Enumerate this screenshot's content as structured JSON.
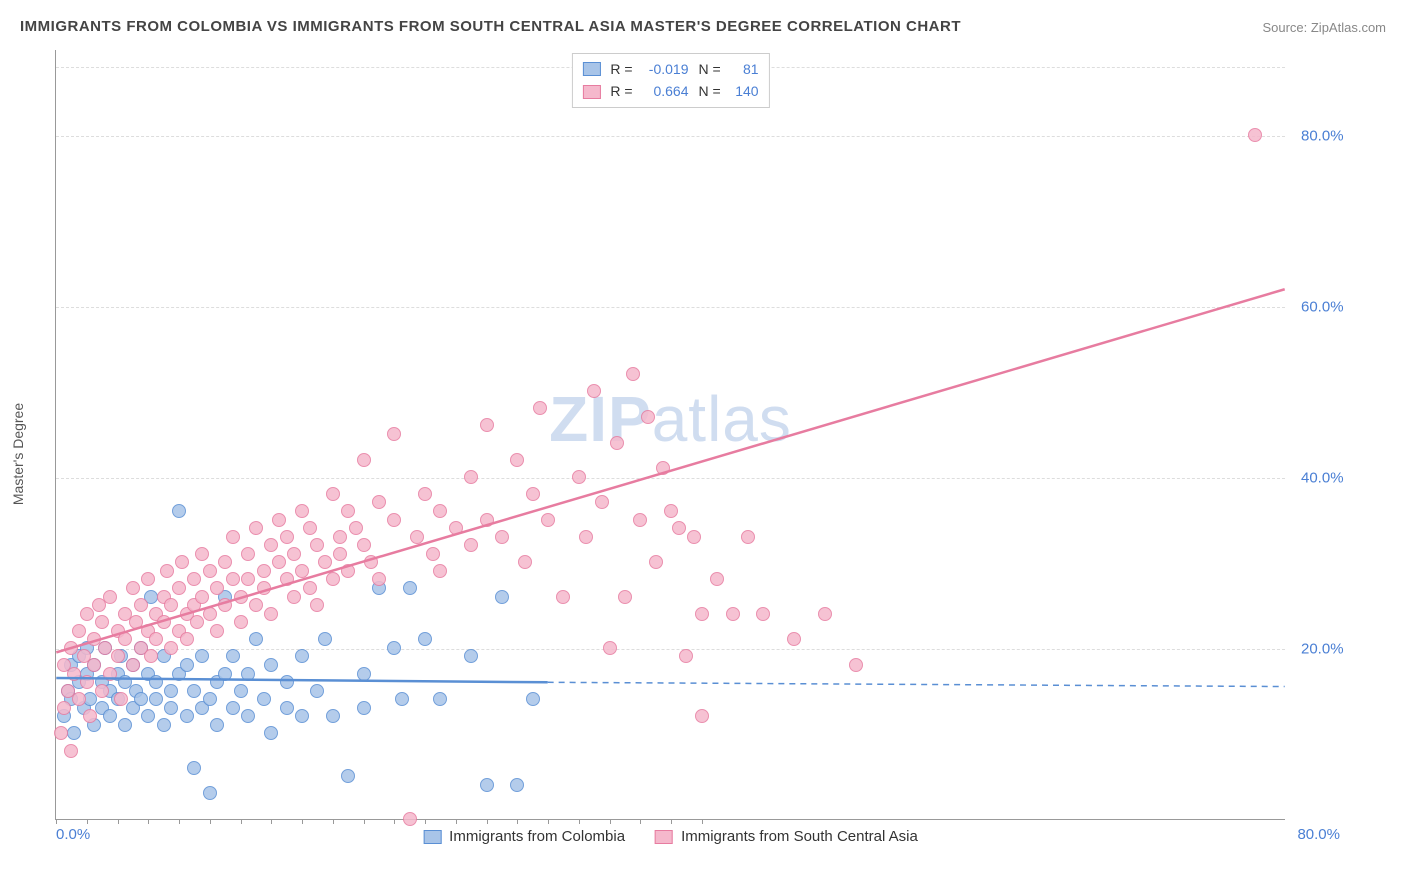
{
  "title": "IMMIGRANTS FROM COLOMBIA VS IMMIGRANTS FROM SOUTH CENTRAL ASIA MASTER'S DEGREE CORRELATION CHART",
  "source": "Source: ZipAtlas.com",
  "watermark_a": "ZIP",
  "watermark_b": "atlas",
  "ylabel": "Master's Degree",
  "chart": {
    "type": "scatter",
    "background_color": "#ffffff",
    "grid_color": "#dddddd",
    "grid_dash": "4,4",
    "axis_color": "#999999",
    "xlim": [
      0,
      80
    ],
    "ylim": [
      0,
      90
    ],
    "ytick_positions": [
      20,
      40,
      60,
      80
    ],
    "ytick_labels": [
      "20.0%",
      "40.0%",
      "60.0%",
      "80.0%"
    ],
    "ytick_color": "#4a7fd4",
    "ytick_fontsize": 15,
    "xtick_start": "0.0%",
    "xtick_end": "80.0%",
    "xaxis_minor_ticks": [
      0,
      2,
      4,
      6,
      8,
      10,
      12,
      14,
      16,
      18,
      20,
      22,
      24,
      26,
      28,
      30,
      32,
      34,
      36,
      38,
      40,
      42
    ],
    "marker_radius": 7,
    "marker_stroke_width": 1.5,
    "marker_fill_opacity": 0.35
  },
  "series": [
    {
      "name": "Immigrants from Colombia",
      "stroke": "#5a8fd4",
      "fill": "#a8c4e8",
      "R": "-0.019",
      "N": "81",
      "trend": {
        "x1": 0,
        "y1": 16.5,
        "x2": 32,
        "y2": 16.0,
        "ext_x2": 80,
        "ext_y2": 15.5,
        "width": 2.5
      },
      "points": [
        [
          0.5,
          12
        ],
        [
          0.8,
          15
        ],
        [
          1.0,
          18
        ],
        [
          1.0,
          14
        ],
        [
          1.2,
          10
        ],
        [
          1.5,
          19
        ],
        [
          1.5,
          16
        ],
        [
          1.8,
          13
        ],
        [
          2.0,
          17
        ],
        [
          2.0,
          20
        ],
        [
          2.2,
          14
        ],
        [
          2.5,
          11
        ],
        [
          2.5,
          18
        ],
        [
          3.0,
          16
        ],
        [
          3.0,
          13
        ],
        [
          3.2,
          20
        ],
        [
          3.5,
          15
        ],
        [
          3.5,
          12
        ],
        [
          4.0,
          17
        ],
        [
          4.0,
          14
        ],
        [
          4.2,
          19
        ],
        [
          4.5,
          11
        ],
        [
          4.5,
          16
        ],
        [
          5.0,
          13
        ],
        [
          5.0,
          18
        ],
        [
          5.2,
          15
        ],
        [
          5.5,
          14
        ],
        [
          5.5,
          20
        ],
        [
          6.0,
          12
        ],
        [
          6.0,
          17
        ],
        [
          6.2,
          26
        ],
        [
          6.5,
          14
        ],
        [
          6.5,
          16
        ],
        [
          7.0,
          19
        ],
        [
          7.0,
          11
        ],
        [
          7.5,
          15
        ],
        [
          7.5,
          13
        ],
        [
          8.0,
          17
        ],
        [
          8.0,
          36
        ],
        [
          8.5,
          12
        ],
        [
          8.5,
          18
        ],
        [
          9.0,
          6
        ],
        [
          9.0,
          15
        ],
        [
          9.5,
          13
        ],
        [
          9.5,
          19
        ],
        [
          10.0,
          14
        ],
        [
          10.0,
          3
        ],
        [
          10.5,
          16
        ],
        [
          10.5,
          11
        ],
        [
          11.0,
          17
        ],
        [
          11.0,
          26
        ],
        [
          11.5,
          13
        ],
        [
          11.5,
          19
        ],
        [
          12.0,
          15
        ],
        [
          12.5,
          17
        ],
        [
          12.5,
          12
        ],
        [
          13.0,
          21
        ],
        [
          13.5,
          14
        ],
        [
          14.0,
          18
        ],
        [
          14.0,
          10
        ],
        [
          15.0,
          13
        ],
        [
          15.0,
          16
        ],
        [
          16.0,
          19
        ],
        [
          16.0,
          12
        ],
        [
          17.0,
          15
        ],
        [
          17.5,
          21
        ],
        [
          18.0,
          12
        ],
        [
          19.0,
          5
        ],
        [
          20.0,
          17
        ],
        [
          20.0,
          13
        ],
        [
          21.0,
          27
        ],
        [
          22.0,
          20
        ],
        [
          22.5,
          14
        ],
        [
          23.0,
          27
        ],
        [
          24.0,
          21
        ],
        [
          25.0,
          14
        ],
        [
          27.0,
          19
        ],
        [
          28.0,
          4
        ],
        [
          29.0,
          26
        ],
        [
          30.0,
          4
        ],
        [
          31.0,
          14
        ]
      ]
    },
    {
      "name": "Immigrants from South Central Asia",
      "stroke": "#e77ca0",
      "fill": "#f5b8cc",
      "R": "0.664",
      "N": "140",
      "trend": {
        "x1": 0,
        "y1": 19.5,
        "x2": 80,
        "y2": 62,
        "width": 2.5
      },
      "points": [
        [
          0.3,
          10
        ],
        [
          0.5,
          13
        ],
        [
          0.5,
          18
        ],
        [
          0.8,
          15
        ],
        [
          1.0,
          20
        ],
        [
          1.0,
          8
        ],
        [
          1.2,
          17
        ],
        [
          1.5,
          14
        ],
        [
          1.5,
          22
        ],
        [
          1.8,
          19
        ],
        [
          2.0,
          16
        ],
        [
          2.0,
          24
        ],
        [
          2.2,
          12
        ],
        [
          2.5,
          21
        ],
        [
          2.5,
          18
        ],
        [
          2.8,
          25
        ],
        [
          3.0,
          15
        ],
        [
          3.0,
          23
        ],
        [
          3.2,
          20
        ],
        [
          3.5,
          17
        ],
        [
          3.5,
          26
        ],
        [
          4.0,
          22
        ],
        [
          4.0,
          19
        ],
        [
          4.2,
          14
        ],
        [
          4.5,
          24
        ],
        [
          4.5,
          21
        ],
        [
          5.0,
          27
        ],
        [
          5.0,
          18
        ],
        [
          5.2,
          23
        ],
        [
          5.5,
          20
        ],
        [
          5.5,
          25
        ],
        [
          6.0,
          22
        ],
        [
          6.0,
          28
        ],
        [
          6.2,
          19
        ],
        [
          6.5,
          24
        ],
        [
          6.5,
          21
        ],
        [
          7.0,
          26
        ],
        [
          7.0,
          23
        ],
        [
          7.2,
          29
        ],
        [
          7.5,
          20
        ],
        [
          7.5,
          25
        ],
        [
          8.0,
          27
        ],
        [
          8.0,
          22
        ],
        [
          8.2,
          30
        ],
        [
          8.5,
          24
        ],
        [
          8.5,
          21
        ],
        [
          9.0,
          28
        ],
        [
          9.0,
          25
        ],
        [
          9.2,
          23
        ],
        [
          9.5,
          31
        ],
        [
          9.5,
          26
        ],
        [
          10.0,
          29
        ],
        [
          10.0,
          24
        ],
        [
          10.5,
          27
        ],
        [
          10.5,
          22
        ],
        [
          11.0,
          30
        ],
        [
          11.0,
          25
        ],
        [
          11.5,
          28
        ],
        [
          11.5,
          33
        ],
        [
          12.0,
          26
        ],
        [
          12.0,
          23
        ],
        [
          12.5,
          31
        ],
        [
          12.5,
          28
        ],
        [
          13.0,
          25
        ],
        [
          13.0,
          34
        ],
        [
          13.5,
          29
        ],
        [
          13.5,
          27
        ],
        [
          14.0,
          32
        ],
        [
          14.0,
          24
        ],
        [
          14.5,
          30
        ],
        [
          14.5,
          35
        ],
        [
          15.0,
          28
        ],
        [
          15.0,
          33
        ],
        [
          15.5,
          26
        ],
        [
          15.5,
          31
        ],
        [
          16.0,
          36
        ],
        [
          16.0,
          29
        ],
        [
          16.5,
          27
        ],
        [
          16.5,
          34
        ],
        [
          17.0,
          32
        ],
        [
          17.0,
          25
        ],
        [
          17.5,
          30
        ],
        [
          18.0,
          38
        ],
        [
          18.0,
          28
        ],
        [
          18.5,
          33
        ],
        [
          18.5,
          31
        ],
        [
          19.0,
          36
        ],
        [
          19.0,
          29
        ],
        [
          19.5,
          34
        ],
        [
          20.0,
          32
        ],
        [
          20.0,
          42
        ],
        [
          20.5,
          30
        ],
        [
          21.0,
          37
        ],
        [
          21.0,
          28
        ],
        [
          22.0,
          35
        ],
        [
          22.0,
          45
        ],
        [
          23.0,
          0
        ],
        [
          23.5,
          33
        ],
        [
          24.0,
          38
        ],
        [
          24.5,
          31
        ],
        [
          25.0,
          36
        ],
        [
          25.0,
          29
        ],
        [
          26.0,
          34
        ],
        [
          27.0,
          40
        ],
        [
          27.0,
          32
        ],
        [
          28.0,
          46
        ],
        [
          28.0,
          35
        ],
        [
          29.0,
          33
        ],
        [
          30.0,
          42
        ],
        [
          30.5,
          30
        ],
        [
          31.0,
          38
        ],
        [
          31.5,
          48
        ],
        [
          32.0,
          35
        ],
        [
          33.0,
          26
        ],
        [
          34.0,
          40
        ],
        [
          34.5,
          33
        ],
        [
          35.0,
          50
        ],
        [
          35.5,
          37
        ],
        [
          36.0,
          20
        ],
        [
          36.5,
          44
        ],
        [
          37.0,
          26
        ],
        [
          37.5,
          52
        ],
        [
          38.0,
          35
        ],
        [
          38.5,
          47
        ],
        [
          39.0,
          30
        ],
        [
          39.5,
          41
        ],
        [
          40.0,
          36
        ],
        [
          40.5,
          34
        ],
        [
          41.0,
          19
        ],
        [
          41.5,
          33
        ],
        [
          42.0,
          24
        ],
        [
          42.0,
          12
        ],
        [
          43.0,
          28
        ],
        [
          44.0,
          24
        ],
        [
          45.0,
          33
        ],
        [
          46.0,
          24
        ],
        [
          48.0,
          21
        ],
        [
          50.0,
          24
        ],
        [
          52.0,
          18
        ],
        [
          78.0,
          80
        ]
      ]
    }
  ],
  "legend_bottom": [
    {
      "label": "Immigrants from Colombia",
      "stroke": "#5a8fd4",
      "fill": "#a8c4e8"
    },
    {
      "label": "Immigrants from South Central Asia",
      "stroke": "#e77ca0",
      "fill": "#f5b8cc"
    }
  ]
}
